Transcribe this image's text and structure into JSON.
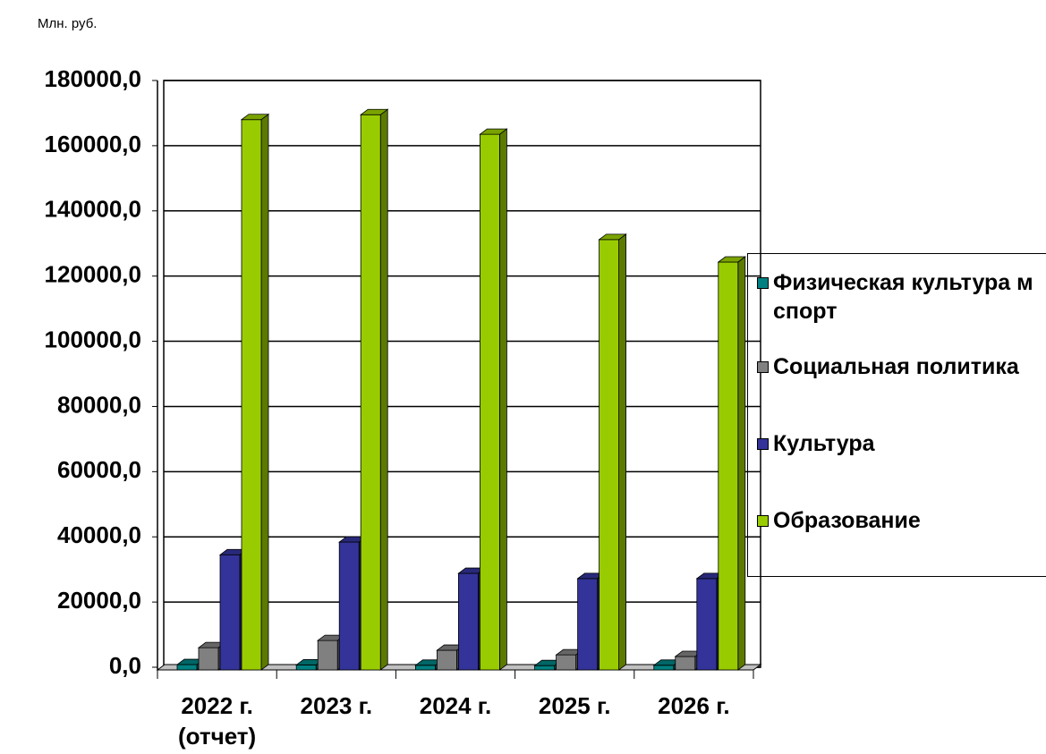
{
  "chart_data": {
    "type": "bar3d",
    "units_label": "Млн. руб.",
    "categories": [
      "2022 г.\n(отчет)",
      "2023 г.",
      "2024 г.",
      "2025 г.",
      "2026 г."
    ],
    "series": [
      {
        "name": "Физическая культура м спорт",
        "color": "#008080",
        "values": [
          800,
          700,
          600,
          500,
          600
        ]
      },
      {
        "name": "Социальная политика",
        "color": "#808080",
        "values": [
          6000,
          8200,
          5200,
          3800,
          3300
        ]
      },
      {
        "name": "Культура",
        "color": "#333399",
        "values": [
          34500,
          38400,
          28800,
          27200,
          27200
        ]
      },
      {
        "name": "Образование",
        "color": "#99cc00",
        "values": [
          168000,
          169500,
          163500,
          131200,
          124300
        ]
      }
    ],
    "ylim": [
      0,
      180000
    ],
    "yticks": [
      {
        "value": 0,
        "label": "0,0"
      },
      {
        "value": 20000,
        "label": "20000,0"
      },
      {
        "value": 40000,
        "label": "40000,0"
      },
      {
        "value": 60000,
        "label": "60000,0"
      },
      {
        "value": 80000,
        "label": "80000,0"
      },
      {
        "value": 100000,
        "label": "100000,0"
      },
      {
        "value": 120000,
        "label": "120000,0"
      },
      {
        "value": 140000,
        "label": "140000,0"
      },
      {
        "value": 160000,
        "label": "160000,0"
      },
      {
        "value": 180000,
        "label": "180000,0"
      }
    ],
    "grid": true,
    "legend": "right"
  }
}
